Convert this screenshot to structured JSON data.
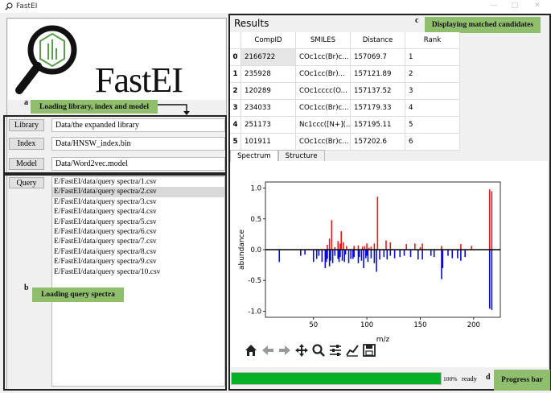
{
  "window": {
    "title": "FastEI"
  },
  "logo": {
    "text": "FastEI"
  },
  "annotations": {
    "a": {
      "letter": "a",
      "label": "Loading library, index and model"
    },
    "b": {
      "letter": "b",
      "label": "Loading query spectra"
    },
    "c": {
      "letter": "c",
      "label": "Displaying matched candidates"
    },
    "d": {
      "letter": "d",
      "label": "Progress bar"
    }
  },
  "inputs": {
    "library": {
      "button": "Library",
      "value": "Data/the expanded library"
    },
    "index": {
      "button": "Index",
      "value": "Data/HNSW_index.bin"
    },
    "model": {
      "button": "Model",
      "value": "Data/Word2vec.model"
    }
  },
  "query": {
    "button": "Query",
    "items": [
      "E/FastEI/data/query spectra/1.csv",
      "E/FastEI/data/query spectra/2.csv",
      "E/FastEI/data/query spectra/3.csv",
      "E/FastEI/data/query spectra/4.csv",
      "E/FastEI/data/query spectra/5.csv",
      "E/FastEI/data/query spectra/6.csv",
      "E/FastEI/data/query spectra/7.csv",
      "E/FastEI/data/query spectra/8.csv",
      "E/FastEI/data/query spectra/9.csv",
      "E/FastEI/data/query spectra/10.csv"
    ],
    "selected_index": 1
  },
  "results": {
    "title": "Results",
    "headers": [
      "CompID",
      "SMILES",
      "Distance",
      "Rank"
    ],
    "rows": [
      {
        "idx": "0",
        "compid": "2166722",
        "smiles": "COc1cc(Br)c...",
        "distance": "157069.7",
        "rank": "1"
      },
      {
        "idx": "1",
        "compid": "235928",
        "smiles": "COc1cc(Br)...",
        "distance": "157121.89",
        "rank": "2"
      },
      {
        "idx": "2",
        "compid": "120289",
        "smiles": "COc1cccc(O...",
        "distance": "157137.52",
        "rank": "3"
      },
      {
        "idx": "3",
        "compid": "234033",
        "smiles": "COc1cc(Br)c...",
        "distance": "157179.33",
        "rank": "4"
      },
      {
        "idx": "4",
        "compid": "251173",
        "smiles": "Nc1ccc([N+](...",
        "distance": "157195.11",
        "rank": "5"
      },
      {
        "idx": "5",
        "compid": "101911",
        "smiles": "COc1cc(Br)c...",
        "distance": "157202.6",
        "rank": "6"
      }
    ]
  },
  "tabs": [
    "Spectrum",
    "Structure"
  ],
  "toolbar_icons": [
    "home-icon",
    "back-arrow-icon",
    "forward-arrow-icon",
    "pan-icon",
    "zoom-icon",
    "configure-subplots-icon",
    "edit-axis-icon",
    "save-icon"
  ],
  "progress": {
    "percent": 100,
    "percent_label": "100%",
    "status": "ready"
  },
  "colors": {
    "positive": "#e31a1c",
    "negative": "#0a0ad6",
    "progress": "#06b025",
    "label_bg": "#8fbe6d"
  },
  "chart_data": {
    "type": "bar",
    "xlabel": "m/z",
    "ylabel": "abundance",
    "xlim": [
      5,
      225
    ],
    "ylim": [
      -1.1,
      1.1
    ],
    "xticks": [
      50,
      100,
      150,
      200
    ],
    "yticks": [
      -1.0,
      -0.5,
      0.0,
      0.5,
      1.0
    ],
    "series": [
      {
        "x": [
          63,
          65,
          67,
          70,
          73,
          75,
          76,
          78,
          81,
          88,
          92,
          96,
          98,
          100,
          102,
          104,
          107,
          110,
          118,
          122,
          137,
          145,
          150,
          152,
          170,
          188,
          198,
          215,
          217
        ],
        "values": [
          0.08,
          0.18,
          0.48,
          0.04,
          0.14,
          0.1,
          0.3,
          0.12,
          0.06,
          0.06,
          0.07,
          0.05,
          0.06,
          0.1,
          0.03,
          0.05,
          0.1,
          0.86,
          0.15,
          0.12,
          0.09,
          0.1,
          0.04,
          0.1,
          0.06,
          0.09,
          0.06,
          0.98,
          0.95
        ]
      },
      {
        "x": [
          18,
          38,
          42,
          50,
          53,
          55,
          58,
          61,
          62,
          63,
          65,
          66,
          68,
          70,
          73,
          74,
          75,
          77,
          79,
          80,
          83,
          85,
          87,
          88,
          92,
          93,
          95,
          97,
          99,
          100,
          101,
          104,
          107,
          109,
          112,
          116,
          119,
          122,
          126,
          131,
          135,
          141,
          148,
          152,
          160,
          163,
          170,
          171,
          176,
          180,
          185,
          188,
          192,
          215,
          217
        ],
        "values": [
          -0.2,
          -0.1,
          -0.08,
          -0.2,
          -0.15,
          -0.1,
          -0.2,
          -0.3,
          -0.2,
          -0.15,
          -0.27,
          -0.18,
          -0.22,
          -0.1,
          -0.15,
          -0.2,
          -0.12,
          -0.18,
          -0.2,
          -0.08,
          -0.22,
          -0.15,
          -0.15,
          -0.12,
          -0.22,
          -0.12,
          -0.18,
          -0.3,
          -0.14,
          -0.1,
          -0.2,
          -0.14,
          -0.22,
          -0.36,
          -0.16,
          -0.12,
          -0.16,
          -0.1,
          -0.14,
          -0.12,
          -0.1,
          -0.12,
          -0.16,
          -0.16,
          -0.1,
          -0.12,
          -0.48,
          -0.3,
          -0.1,
          -0.14,
          -0.14,
          -0.18,
          -0.12,
          -0.96,
          -0.98
        ]
      }
    ]
  }
}
